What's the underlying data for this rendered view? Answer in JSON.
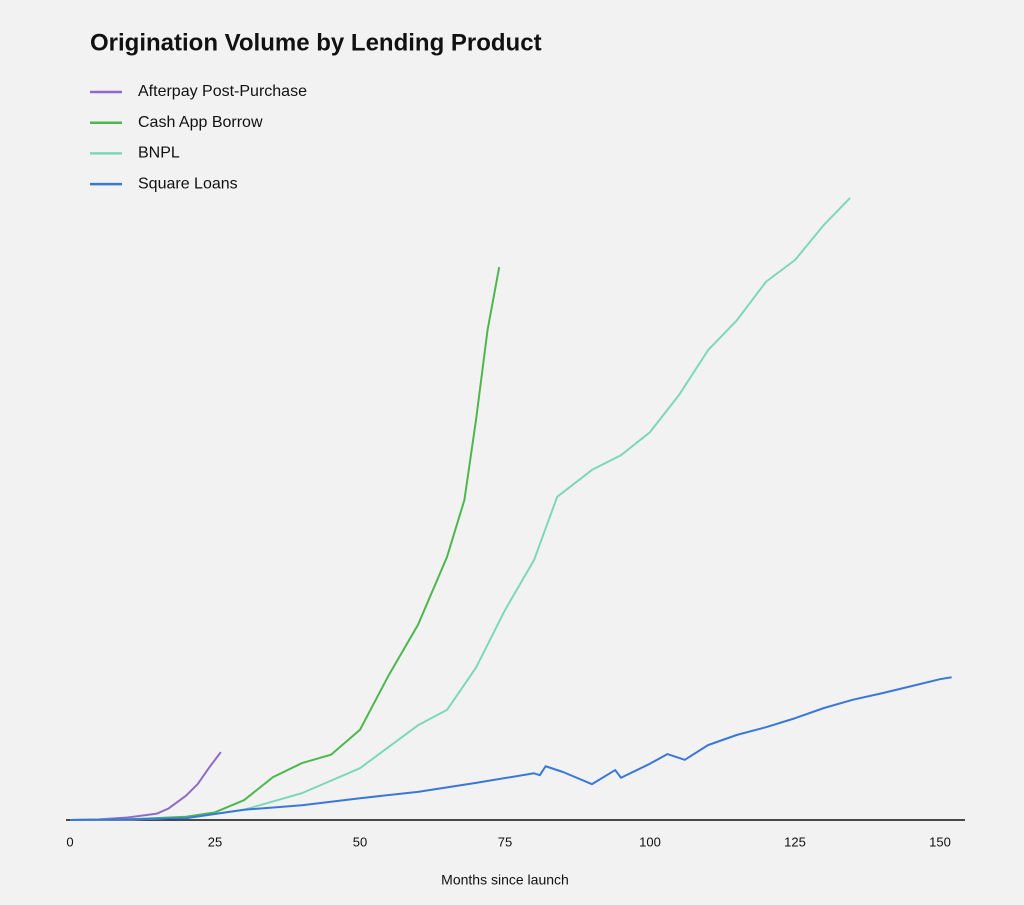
{
  "chart_data": {
    "type": "line",
    "title": "Origination Volume by Lending Product",
    "x_label": "Months since launch",
    "xlim": [
      0,
      154
    ],
    "ylim": [
      0,
      100
    ],
    "xticks": [
      0,
      25,
      50,
      75,
      100,
      125,
      150
    ],
    "grid": false,
    "legend": "top-left",
    "series": [
      {
        "name": "Afterpay Post-Purchase",
        "color": "#8e6bc9",
        "x": [
          0,
          5,
          10,
          15,
          17,
          20,
          22,
          24,
          26
        ],
        "values": [
          0,
          0.1,
          0.4,
          1.0,
          1.8,
          3.8,
          5.6,
          8.2,
          10.6
        ]
      },
      {
        "name": "Cash App Borrow",
        "color": "#4cb84c",
        "x": [
          0,
          10,
          20,
          25,
          30,
          35,
          40,
          45,
          50,
          55,
          60,
          65,
          68,
          70,
          72,
          74
        ],
        "values": [
          0,
          0.1,
          0.5,
          1.2,
          3.1,
          6.7,
          8.9,
          10.2,
          14.1,
          22.7,
          30.5,
          41.1,
          50,
          62.5,
          76.6,
          86.4
        ]
      },
      {
        "name": "BNPL",
        "color": "#7dd8b8",
        "x": [
          0,
          10,
          20,
          30,
          40,
          50,
          60,
          65,
          70,
          75,
          80,
          84,
          90,
          95,
          100,
          105,
          110,
          115,
          120,
          125,
          130,
          134.5
        ],
        "values": [
          0,
          0.1,
          0.3,
          1.6,
          4.2,
          8.1,
          14.8,
          17.2,
          23.8,
          32.8,
          40.6,
          50.5,
          54.7,
          57,
          60.6,
          66.4,
          73.4,
          78.1,
          84.1,
          87.5,
          93,
          97.2
        ]
      },
      {
        "name": "Square Loans",
        "color": "#3a78d8",
        "x": [
          0,
          10,
          20,
          30,
          40,
          50,
          60,
          70,
          80,
          81,
          82,
          85,
          90,
          94,
          95,
          100,
          103,
          106,
          110,
          115,
          120,
          125,
          130,
          135,
          140,
          145,
          150,
          152
        ],
        "values": [
          0,
          0.1,
          0.3,
          1.6,
          2.3,
          3.4,
          4.4,
          5.8,
          7.3,
          7,
          8.4,
          7.5,
          5.6,
          7.8,
          6.6,
          8.8,
          10.3,
          9.4,
          11.7,
          13.3,
          14.5,
          15.9,
          17.5,
          18.8,
          19.8,
          20.9,
          22,
          22.3
        ]
      }
    ]
  }
}
